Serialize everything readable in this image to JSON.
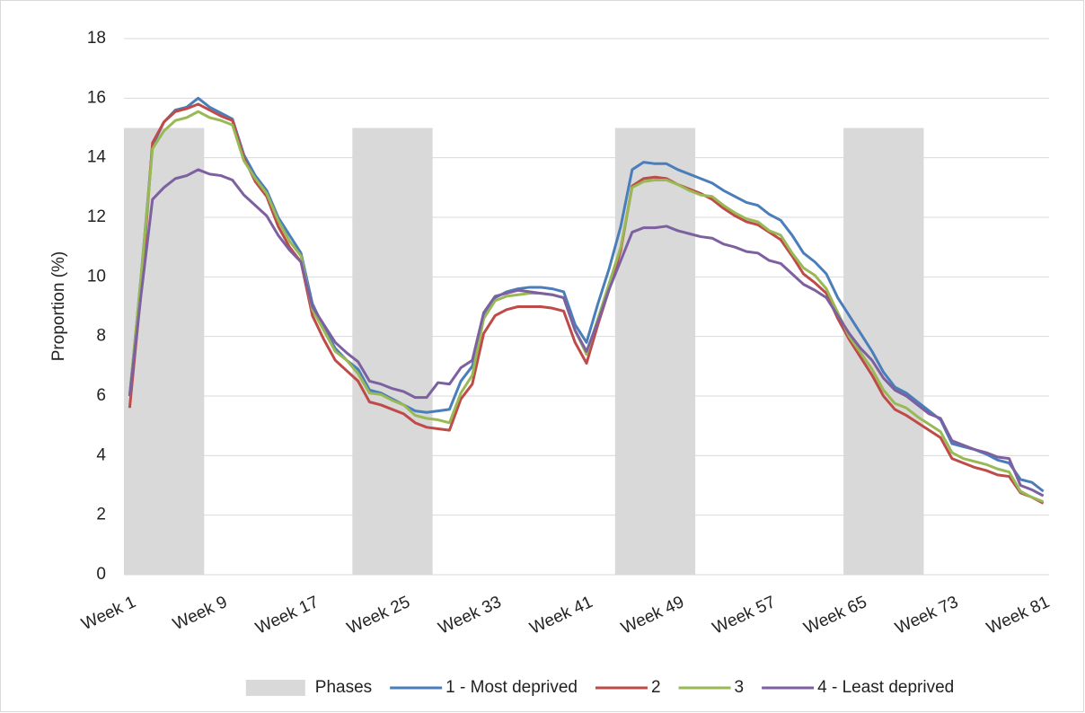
{
  "chart_data": {
    "type": "line",
    "y_label": "Proportion (%)",
    "categories": [
      "Week 1",
      null,
      null,
      null,
      null,
      null,
      null,
      null,
      "Week 9",
      null,
      null,
      null,
      null,
      null,
      null,
      null,
      "Week 17",
      null,
      null,
      null,
      null,
      null,
      null,
      null,
      "Week 25",
      null,
      null,
      null,
      null,
      null,
      null,
      null,
      "Week 33",
      null,
      null,
      null,
      null,
      null,
      null,
      null,
      "Week 41",
      null,
      null,
      null,
      null,
      null,
      null,
      null,
      "Week 49",
      null,
      null,
      null,
      null,
      null,
      null,
      null,
      "Week 57",
      null,
      null,
      null,
      null,
      null,
      null,
      null,
      "Week 65",
      null,
      null,
      null,
      null,
      null,
      null,
      null,
      "Week 73",
      null,
      null,
      null,
      null,
      null,
      null,
      null,
      "Week 81"
    ],
    "ylim": [
      0,
      18
    ],
    "yticks": [
      0,
      2,
      4,
      6,
      8,
      10,
      12,
      14,
      16,
      18
    ],
    "grid": true,
    "legend": "bottom",
    "series": [
      {
        "name": "Phases",
        "type": "bar",
        "color": "#d9d9d9",
        "values": [
          15,
          15,
          15,
          15,
          15,
          15,
          15,
          null,
          null,
          null,
          null,
          null,
          null,
          null,
          null,
          null,
          null,
          null,
          null,
          null,
          15,
          15,
          15,
          15,
          15,
          15,
          15,
          null,
          null,
          null,
          null,
          null,
          null,
          null,
          null,
          null,
          null,
          null,
          null,
          null,
          null,
          null,
          null,
          15,
          15,
          15,
          15,
          15,
          15,
          15,
          null,
          null,
          null,
          null,
          null,
          null,
          null,
          null,
          null,
          null,
          null,
          null,
          null,
          15,
          15,
          15,
          15,
          15,
          15,
          15,
          null,
          null,
          null,
          null,
          null,
          null,
          null,
          null,
          null,
          null,
          null
        ]
      },
      {
        "name": "1 - Most deprived",
        "type": "line",
        "color": "#4a7ebb",
        "values": [
          6.0,
          10.0,
          14.4,
          15.2,
          15.6,
          15.7,
          16.0,
          15.7,
          15.5,
          15.3,
          14.1,
          13.4,
          12.9,
          12.0,
          11.4,
          10.8,
          9.1,
          8.3,
          7.6,
          7.2,
          6.9,
          6.2,
          6.1,
          5.9,
          5.7,
          5.5,
          5.45,
          5.5,
          5.55,
          6.5,
          7.0,
          8.7,
          9.3,
          9.5,
          9.6,
          9.65,
          9.65,
          9.6,
          9.5,
          8.4,
          7.8,
          9.1,
          10.3,
          11.7,
          13.6,
          13.85,
          13.8,
          13.8,
          13.6,
          13.45,
          13.3,
          13.15,
          12.9,
          12.7,
          12.5,
          12.4,
          12.1,
          11.9,
          11.4,
          10.8,
          10.5,
          10.1,
          9.3,
          8.7,
          8.1,
          7.5,
          6.8,
          6.3,
          6.1,
          5.8,
          5.5,
          5.2,
          4.4,
          4.3,
          4.2,
          4.05,
          3.85,
          3.75,
          3.2,
          3.1,
          2.8
        ]
      },
      {
        "name": "2",
        "type": "line",
        "color": "#be4b48",
        "values": [
          5.6,
          9.5,
          14.5,
          15.2,
          15.55,
          15.65,
          15.8,
          15.6,
          15.4,
          15.25,
          14.0,
          13.2,
          12.7,
          11.7,
          11.0,
          10.5,
          8.7,
          7.9,
          7.2,
          6.85,
          6.5,
          5.8,
          5.7,
          5.55,
          5.4,
          5.1,
          4.95,
          4.9,
          4.85,
          5.9,
          6.4,
          8.1,
          8.7,
          8.9,
          9.0,
          9.0,
          9.0,
          8.95,
          8.85,
          7.8,
          7.1,
          8.4,
          9.6,
          10.9,
          13.05,
          13.3,
          13.35,
          13.3,
          13.1,
          12.95,
          12.8,
          12.6,
          12.3,
          12.05,
          11.85,
          11.75,
          11.5,
          11.25,
          10.7,
          10.1,
          9.8,
          9.45,
          8.6,
          7.9,
          7.3,
          6.7,
          6.0,
          5.55,
          5.35,
          5.1,
          4.85,
          4.6,
          3.9,
          3.75,
          3.6,
          3.5,
          3.35,
          3.3,
          2.75,
          2.6,
          2.4
        ]
      },
      {
        "name": "3",
        "type": "line",
        "color": "#98b954",
        "values": [
          6.0,
          10.0,
          14.3,
          14.9,
          15.25,
          15.35,
          15.55,
          15.35,
          15.25,
          15.1,
          13.9,
          13.3,
          12.8,
          11.9,
          11.2,
          10.7,
          8.9,
          8.2,
          7.5,
          7.2,
          6.75,
          6.1,
          6.05,
          5.85,
          5.7,
          5.35,
          5.25,
          5.2,
          5.1,
          6.1,
          6.7,
          8.6,
          9.2,
          9.35,
          9.4,
          9.45,
          9.45,
          9.4,
          9.3,
          8.2,
          7.4,
          8.6,
          9.8,
          11.0,
          13.0,
          13.2,
          13.25,
          13.25,
          13.1,
          12.9,
          12.75,
          12.7,
          12.4,
          12.15,
          11.95,
          11.85,
          11.55,
          11.4,
          10.8,
          10.3,
          10.05,
          9.6,
          8.8,
          8.0,
          7.45,
          6.9,
          6.2,
          5.75,
          5.6,
          5.3,
          5.05,
          4.8,
          4.1,
          3.9,
          3.8,
          3.7,
          3.55,
          3.45,
          2.8,
          2.6,
          2.45
        ]
      },
      {
        "name": "4 - Least deprived",
        "type": "line",
        "color": "#7d60a0",
        "values": [
          6.0,
          9.4,
          12.6,
          13.0,
          13.3,
          13.4,
          13.6,
          13.45,
          13.4,
          13.25,
          12.75,
          12.4,
          12.05,
          11.4,
          10.9,
          10.5,
          9.0,
          8.4,
          7.8,
          7.45,
          7.15,
          6.5,
          6.4,
          6.25,
          6.15,
          5.95,
          5.95,
          6.45,
          6.4,
          6.95,
          7.2,
          8.8,
          9.35,
          9.45,
          9.55,
          9.5,
          9.45,
          9.4,
          9.3,
          8.2,
          7.5,
          8.5,
          9.6,
          10.55,
          11.5,
          11.65,
          11.65,
          11.7,
          11.55,
          11.45,
          11.35,
          11.3,
          11.1,
          11.0,
          10.85,
          10.8,
          10.55,
          10.45,
          10.1,
          9.75,
          9.55,
          9.3,
          8.7,
          8.1,
          7.6,
          7.2,
          6.6,
          6.2,
          6.0,
          5.7,
          5.4,
          5.25,
          4.5,
          4.35,
          4.2,
          4.1,
          3.95,
          3.9,
          3.0,
          2.85,
          2.65
        ]
      }
    ]
  }
}
